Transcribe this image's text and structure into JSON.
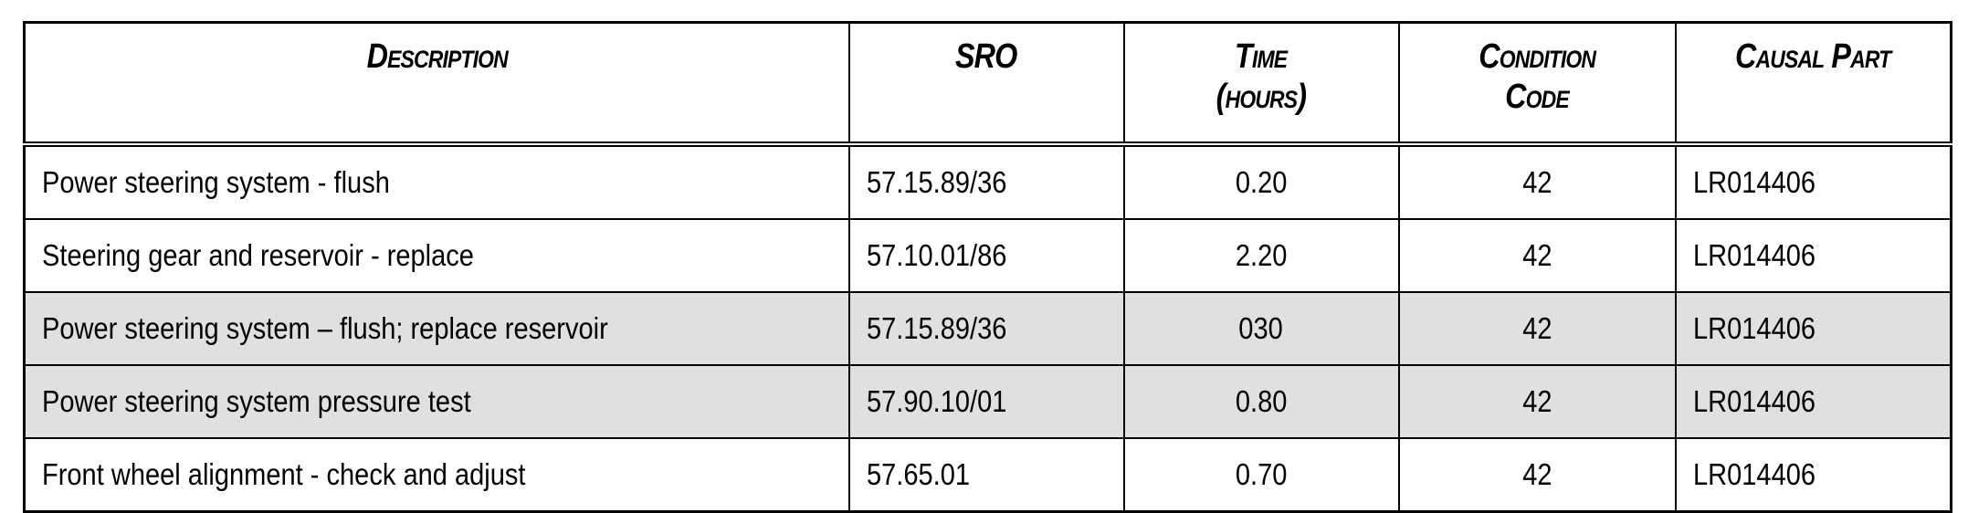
{
  "table": {
    "headers": [
      "Description",
      "SRO",
      "Time (hours)",
      "Condition Code",
      "Causal Part"
    ],
    "header_lines": {
      "time": [
        "Time",
        "(hours)"
      ],
      "condition": [
        "Condition",
        "Code"
      ]
    },
    "shade_color": "#e0e0e0",
    "rows": [
      {
        "description": "Power steering system - flush",
        "sro": "57.15.89/36",
        "time": "0.20",
        "condition": "42",
        "part": "LR014406",
        "shaded": false
      },
      {
        "description": "Steering gear and reservoir - replace",
        "sro": "57.10.01/86",
        "time": "2.20",
        "condition": "42",
        "part": "LR014406",
        "shaded": false
      },
      {
        "description": "Power steering system – flush; replace reservoir",
        "sro": "57.15.89/36",
        "time": "030",
        "condition": "42",
        "part": "LR014406",
        "shaded": true
      },
      {
        "description": "Power steering system pressure test",
        "sro": "57.90.10/01",
        "time": "0.80",
        "condition": "42",
        "part": "LR014406",
        "shaded": true
      },
      {
        "description": "Front wheel alignment - check and adjust",
        "sro": "57.65.01",
        "time": "0.70",
        "condition": "42",
        "part": "LR014406",
        "shaded": false
      }
    ]
  }
}
